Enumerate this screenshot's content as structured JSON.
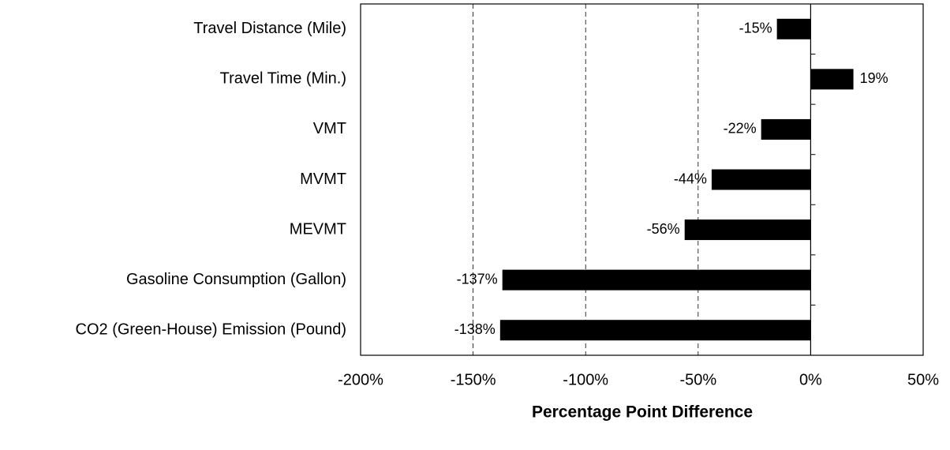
{
  "chart_data": {
    "type": "hbar",
    "x_label": "Percentage Point Difference",
    "categories": [
      "Travel Distance (Mile)",
      "Travel Time (Min.)",
      "VMT",
      "MVMT",
      "MEVMT",
      "Gasoline Consumption (Gallon)",
      "CO2 (Green-House) Emission (Pound)"
    ],
    "values": [
      -15,
      19,
      -22,
      -44,
      -56,
      -137,
      -138
    ],
    "value_labels": [
      "-15%",
      "19%",
      "-22%",
      "-44%",
      "-56%",
      "-137%",
      "-138%"
    ],
    "color": "#000000",
    "xlim": [
      -200,
      50
    ],
    "xticks": [
      {
        "value": -200,
        "label": "-200%"
      },
      {
        "value": -150,
        "label": "-150%"
      },
      {
        "value": -100,
        "label": "-100%"
      },
      {
        "value": -50,
        "label": "-50%"
      },
      {
        "value": 0,
        "label": "0%"
      },
      {
        "value": 50,
        "label": "50%"
      }
    ],
    "grid": true
  }
}
